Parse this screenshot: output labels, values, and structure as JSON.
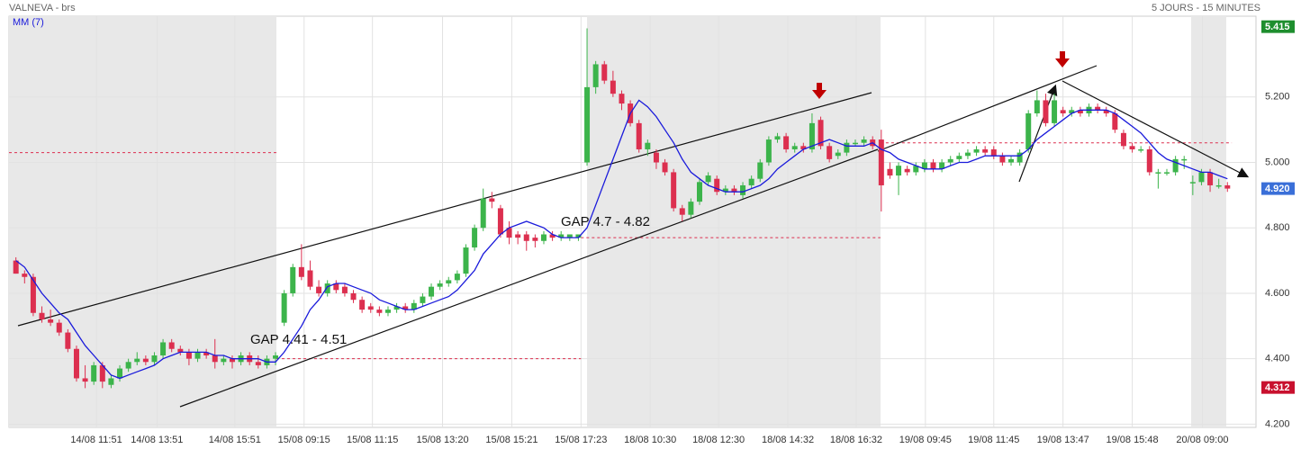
{
  "chart_data": {
    "type": "candlestick",
    "title": "VALNEVA - brs",
    "subtitle": "5 JOURS - 15 MINUTES",
    "up_color": "#3cb44b",
    "down_color": "#dc2f4f",
    "ohlc": [
      [
        4.7,
        4.71,
        4.66,
        4.66
      ],
      [
        4.66,
        4.67,
        4.63,
        4.65
      ],
      [
        4.65,
        4.66,
        4.53,
        4.54
      ],
      [
        4.54,
        4.56,
        4.51,
        4.52
      ],
      [
        4.52,
        4.55,
        4.5,
        4.51
      ],
      [
        4.51,
        4.52,
        4.47,
        4.48
      ],
      [
        4.48,
        4.49,
        4.42,
        4.43
      ],
      [
        4.43,
        4.44,
        4.33,
        4.34
      ],
      [
        4.34,
        4.38,
        4.31,
        4.33
      ],
      [
        4.33,
        4.39,
        4.32,
        4.38
      ],
      [
        4.38,
        4.39,
        4.31,
        4.33
      ],
      [
        4.32,
        4.35,
        4.31,
        4.34
      ],
      [
        4.34,
        4.38,
        4.33,
        4.37
      ],
      [
        4.37,
        4.4,
        4.36,
        4.39
      ],
      [
        4.39,
        4.42,
        4.38,
        4.4
      ],
      [
        4.4,
        4.41,
        4.38,
        4.39
      ],
      [
        4.39,
        4.42,
        4.38,
        4.41
      ],
      [
        4.41,
        4.46,
        4.4,
        4.45
      ],
      [
        4.45,
        4.46,
        4.42,
        4.43
      ],
      [
        4.43,
        4.44,
        4.41,
        4.42
      ],
      [
        4.42,
        4.43,
        4.38,
        4.4
      ],
      [
        4.4,
        4.43,
        4.39,
        4.42
      ],
      [
        4.42,
        4.43,
        4.4,
        4.41
      ],
      [
        4.41,
        4.46,
        4.37,
        4.39
      ],
      [
        4.39,
        4.41,
        4.38,
        4.4
      ],
      [
        4.4,
        4.41,
        4.37,
        4.39
      ],
      [
        4.39,
        4.42,
        4.38,
        4.41
      ],
      [
        4.41,
        4.42,
        4.38,
        4.39
      ],
      [
        4.39,
        4.41,
        4.37,
        4.38
      ],
      [
        4.38,
        4.41,
        4.37,
        4.4
      ],
      [
        4.4,
        4.42,
        4.38,
        4.41
      ],
      [
        4.51,
        4.61,
        4.5,
        4.6
      ],
      [
        4.6,
        4.69,
        4.59,
        4.68
      ],
      [
        4.68,
        4.75,
        4.64,
        4.65
      ],
      [
        4.67,
        4.7,
        4.61,
        4.62
      ],
      [
        4.62,
        4.64,
        4.59,
        4.6
      ],
      [
        4.6,
        4.64,
        4.59,
        4.63
      ],
      [
        4.63,
        4.64,
        4.6,
        4.61
      ],
      [
        4.62,
        4.63,
        4.59,
        4.6
      ],
      [
        4.6,
        4.61,
        4.57,
        4.58
      ],
      [
        4.58,
        4.59,
        4.54,
        4.55
      ],
      [
        4.56,
        4.57,
        4.54,
        4.55
      ],
      [
        4.55,
        4.56,
        4.53,
        4.54
      ],
      [
        4.54,
        4.56,
        4.53,
        4.55
      ],
      [
        4.55,
        4.57,
        4.54,
        4.56
      ],
      [
        4.56,
        4.57,
        4.54,
        4.55
      ],
      [
        4.55,
        4.58,
        4.54,
        4.57
      ],
      [
        4.57,
        4.6,
        4.56,
        4.59
      ],
      [
        4.59,
        4.63,
        4.58,
        4.62
      ],
      [
        4.62,
        4.64,
        4.61,
        4.63
      ],
      [
        4.63,
        4.65,
        4.62,
        4.64
      ],
      [
        4.64,
        4.67,
        4.63,
        4.66
      ],
      [
        4.66,
        4.75,
        4.65,
        4.74
      ],
      [
        4.74,
        4.81,
        4.73,
        4.8
      ],
      [
        4.8,
        4.92,
        4.79,
        4.89
      ],
      [
        4.89,
        4.91,
        4.86,
        4.88
      ],
      [
        4.86,
        4.87,
        4.77,
        4.78
      ],
      [
        4.8,
        4.82,
        4.75,
        4.77
      ],
      [
        4.78,
        4.79,
        4.75,
        4.77
      ],
      [
        4.78,
        4.79,
        4.73,
        4.76
      ],
      [
        4.77,
        4.78,
        4.74,
        4.76
      ],
      [
        4.76,
        4.79,
        4.75,
        4.78
      ],
      [
        4.78,
        4.79,
        4.76,
        4.77
      ],
      [
        4.77,
        4.79,
        4.76,
        4.78
      ],
      [
        4.77,
        4.78,
        4.76,
        4.78
      ],
      [
        4.77,
        4.78,
        4.76,
        4.78
      ],
      [
        5.0,
        5.41,
        4.99,
        5.23
      ],
      [
        5.23,
        5.31,
        5.21,
        5.3
      ],
      [
        5.3,
        5.31,
        5.24,
        5.25
      ],
      [
        5.25,
        5.28,
        5.2,
        5.21
      ],
      [
        5.21,
        5.22,
        5.16,
        5.18
      ],
      [
        5.18,
        5.19,
        5.11,
        5.12
      ],
      [
        5.12,
        5.13,
        5.03,
        5.04
      ],
      [
        5.04,
        5.07,
        5.02,
        5.06
      ],
      [
        5.03,
        5.04,
        4.98,
        5.0
      ],
      [
        5.0,
        5.01,
        4.96,
        4.97
      ],
      [
        4.97,
        4.98,
        4.85,
        4.86
      ],
      [
        4.86,
        4.87,
        4.82,
        4.84
      ],
      [
        4.84,
        4.89,
        4.83,
        4.88
      ],
      [
        4.88,
        4.95,
        4.87,
        4.94
      ],
      [
        4.94,
        4.97,
        4.93,
        4.96
      ],
      [
        4.95,
        4.96,
        4.9,
        4.91
      ],
      [
        4.91,
        4.93,
        4.9,
        4.92
      ],
      [
        4.92,
        4.93,
        4.9,
        4.91
      ],
      [
        4.9,
        4.94,
        4.89,
        4.93
      ],
      [
        4.93,
        4.96,
        4.92,
        4.95
      ],
      [
        4.95,
        5.01,
        4.94,
        5.0
      ],
      [
        5.0,
        5.08,
        4.99,
        5.07
      ],
      [
        5.07,
        5.09,
        5.06,
        5.08
      ],
      [
        5.08,
        5.09,
        5.03,
        5.04
      ],
      [
        5.04,
        5.06,
        5.03,
        5.05
      ],
      [
        5.05,
        5.06,
        5.03,
        5.04
      ],
      [
        5.04,
        5.15,
        5.03,
        5.12
      ],
      [
        5.13,
        5.14,
        5.04,
        5.05
      ],
      [
        5.05,
        5.06,
        5.0,
        5.01
      ],
      [
        5.02,
        5.04,
        5.01,
        5.03
      ],
      [
        5.03,
        5.07,
        5.02,
        5.06
      ],
      [
        5.06,
        5.07,
        5.05,
        5.06
      ],
      [
        5.06,
        5.08,
        5.05,
        5.07
      ],
      [
        5.07,
        5.08,
        5.04,
        5.05
      ],
      [
        5.07,
        5.1,
        4.85,
        4.93
      ],
      [
        4.98,
        5.0,
        4.95,
        4.96
      ],
      [
        4.96,
        5.0,
        4.9,
        4.99
      ],
      [
        4.98,
        4.99,
        4.96,
        4.97
      ],
      [
        4.97,
        5.0,
        4.96,
        4.99
      ],
      [
        4.98,
        5.01,
        4.97,
        5.0
      ],
      [
        5.0,
        5.01,
        4.97,
        4.98
      ],
      [
        4.98,
        5.01,
        4.97,
        5.0
      ],
      [
        5.0,
        5.02,
        4.99,
        5.01
      ],
      [
        5.01,
        5.03,
        5.0,
        5.02
      ],
      [
        5.02,
        5.04,
        5.01,
        5.03
      ],
      [
        5.03,
        5.05,
        5.02,
        5.04
      ],
      [
        5.04,
        5.05,
        5.02,
        5.03
      ],
      [
        5.04,
        5.05,
        5.01,
        5.02
      ],
      [
        5.02,
        5.03,
        4.99,
        5.0
      ],
      [
        5.0,
        5.02,
        4.99,
        5.01
      ],
      [
        5.0,
        5.04,
        4.99,
        5.03
      ],
      [
        5.04,
        5.16,
        5.03,
        5.15
      ],
      [
        5.15,
        5.22,
        5.14,
        5.19
      ],
      [
        5.19,
        5.21,
        5.11,
        5.12
      ],
      [
        5.12,
        5.21,
        5.11,
        5.19
      ],
      [
        5.16,
        5.17,
        5.14,
        5.15
      ],
      [
        5.15,
        5.17,
        5.14,
        5.16
      ],
      [
        5.16,
        5.17,
        5.14,
        5.15
      ],
      [
        5.15,
        5.18,
        5.14,
        5.17
      ],
      [
        5.17,
        5.18,
        5.15,
        5.16
      ],
      [
        5.16,
        5.17,
        5.14,
        5.15
      ],
      [
        5.15,
        5.16,
        5.09,
        5.1
      ],
      [
        5.09,
        5.1,
        5.04,
        5.05
      ],
      [
        5.05,
        5.06,
        5.03,
        5.04
      ],
      [
        5.04,
        5.05,
        5.03,
        5.04
      ],
      [
        5.04,
        5.05,
        4.96,
        4.97
      ],
      [
        4.97,
        4.98,
        4.92,
        4.97
      ],
      [
        4.97,
        4.98,
        4.96,
        4.97
      ],
      [
        4.97,
        5.02,
        4.96,
        5.01
      ],
      [
        5.01,
        5.02,
        4.98,
        5.01
      ],
      [
        4.94,
        4.96,
        4.9,
        4.94
      ],
      [
        4.94,
        4.98,
        4.93,
        4.97
      ],
      [
        4.97,
        4.98,
        4.91,
        4.93
      ],
      [
        4.93,
        4.95,
        4.92,
        4.93
      ],
      [
        4.93,
        4.94,
        4.91,
        4.92
      ]
    ],
    "ma": {
      "name": "MM (7)",
      "color": "#1a1adb",
      "values": [
        4.7,
        4.68,
        4.64,
        4.6,
        4.57,
        4.54,
        4.52,
        4.48,
        4.44,
        4.41,
        4.38,
        4.35,
        4.34,
        4.35,
        4.36,
        4.37,
        4.38,
        4.4,
        4.41,
        4.42,
        4.42,
        4.42,
        4.42,
        4.41,
        4.41,
        4.4,
        4.4,
        4.4,
        4.4,
        4.39,
        4.39,
        4.42,
        4.46,
        4.5,
        4.55,
        4.58,
        4.62,
        4.63,
        4.63,
        4.62,
        4.61,
        4.6,
        4.58,
        4.57,
        4.56,
        4.55,
        4.55,
        4.56,
        4.57,
        4.58,
        4.59,
        4.61,
        4.64,
        4.67,
        4.72,
        4.75,
        4.78,
        4.8,
        4.81,
        4.82,
        4.81,
        4.8,
        4.78,
        4.77,
        4.77,
        4.77,
        4.8,
        4.87,
        4.94,
        5.01,
        5.08,
        5.15,
        5.19,
        5.17,
        5.14,
        5.1,
        5.06,
        5.01,
        4.97,
        4.95,
        4.93,
        4.92,
        4.91,
        4.91,
        4.91,
        4.92,
        4.93,
        4.95,
        4.98,
        5.0,
        5.02,
        5.04,
        5.05,
        5.06,
        5.07,
        5.06,
        5.05,
        5.05,
        5.05,
        5.06,
        5.04,
        5.03,
        5.01,
        5.0,
        4.99,
        4.98,
        4.98,
        4.98,
        4.99,
        5.0,
        5.0,
        5.01,
        5.02,
        5.02,
        5.02,
        5.02,
        5.02,
        5.04,
        5.07,
        5.09,
        5.11,
        5.13,
        5.15,
        5.16,
        5.16,
        5.16,
        5.16,
        5.15,
        5.13,
        5.11,
        5.09,
        5.06,
        5.03,
        5.01,
        5.0,
        4.99,
        4.98,
        4.97,
        4.97,
        4.96,
        4.95
      ]
    },
    "reference_lines": [
      {
        "value": 5.03,
        "from": -0.8,
        "to": 30.1
      },
      {
        "value": 4.4,
        "from": 30.1,
        "to": 65.3
      },
      {
        "value": 4.77,
        "from": 65.3,
        "to": 99.9
      },
      {
        "value": 5.06,
        "from": 99.9,
        "to": 140.5
      }
    ],
    "price_markers": [
      {
        "value": 5.415,
        "label": "5.415",
        "color": "#1e8e2e"
      },
      {
        "value": 4.92,
        "label": "4.920",
        "color": "#3a6fd8"
      },
      {
        "value": 4.312,
        "label": "4.312",
        "color": "#c8102e"
      }
    ],
    "annotations": [
      "GAP 4.41 - 4.51",
      "GAP 4.7 - 4.82"
    ],
    "xlim": [
      -0.8,
      143.3
    ],
    "xticks": [
      {
        "value": 9.3,
        "label": "14/08 11:51"
      },
      {
        "value": 16.3,
        "label": "14/08 13:51"
      },
      {
        "value": 25.3,
        "label": "14/08 15:51"
      },
      {
        "value": 33.3,
        "label": "15/08 09:15"
      },
      {
        "value": 41.2,
        "label": "15/08 11:15"
      },
      {
        "value": 49.3,
        "label": "15/08 13:20"
      },
      {
        "value": 57.3,
        "label": "15/08 15:21"
      },
      {
        "value": 65.3,
        "label": "15/08 17:23"
      },
      {
        "value": 73.3,
        "label": "18/08 10:30"
      },
      {
        "value": 81.2,
        "label": "18/08 12:30"
      },
      {
        "value": 89.2,
        "label": "18/08 14:32"
      },
      {
        "value": 97.1,
        "label": "18/08 16:32"
      },
      {
        "value": 105.1,
        "label": "19/08 09:45"
      },
      {
        "value": 113,
        "label": "19/08 11:45"
      },
      {
        "value": 121,
        "label": "19/08 13:47"
      },
      {
        "value": 129,
        "label": "19/08 15:48"
      },
      {
        "value": 137.1,
        "label": "20/08 09:00"
      }
    ],
    "ylim": [
      4.19,
      5.447
    ],
    "yticks": [
      {
        "value": 4.2,
        "label": "4.200"
      },
      {
        "value": 4.4,
        "label": "4.400"
      },
      {
        "value": 4.6,
        "label": "4.600"
      },
      {
        "value": 4.8,
        "label": "4.800"
      },
      {
        "value": 5.0,
        "label": "5.000"
      },
      {
        "value": 5.2,
        "label": "5.200"
      }
    ],
    "grid": true
  }
}
